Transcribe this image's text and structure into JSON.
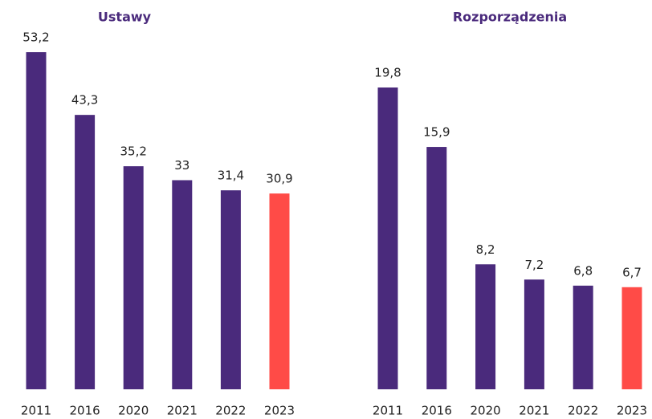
{
  "chart_data": [
    {
      "type": "bar",
      "title": "Ustawy",
      "categories": [
        "2011",
        "2016",
        "2020",
        "2021",
        "2022",
        "2023"
      ],
      "values": [
        53.2,
        43.3,
        35.2,
        33,
        31.4,
        30.9
      ],
      "value_labels": [
        "53,2",
        "43,3",
        "35,2",
        "33",
        "31,4",
        "30,9"
      ],
      "colors": [
        "#4a2a7c",
        "#4a2a7c",
        "#4a2a7c",
        "#4a2a7c",
        "#4a2a7c",
        "#ff4b47"
      ]
    },
    {
      "type": "bar",
      "title": "Rozporządzenia",
      "categories": [
        "2011",
        "2016",
        "2020",
        "2021",
        "2022",
        "2023"
      ],
      "values": [
        19.8,
        15.9,
        8.2,
        7.2,
        6.8,
        6.7
      ],
      "value_labels": [
        "19,8",
        "15,9",
        "8,2",
        "7,2",
        "6,8",
        "6,7"
      ],
      "colors": [
        "#4a2a7c",
        "#4a2a7c",
        "#4a2a7c",
        "#4a2a7c",
        "#4a2a7c",
        "#ff4b47"
      ]
    }
  ]
}
